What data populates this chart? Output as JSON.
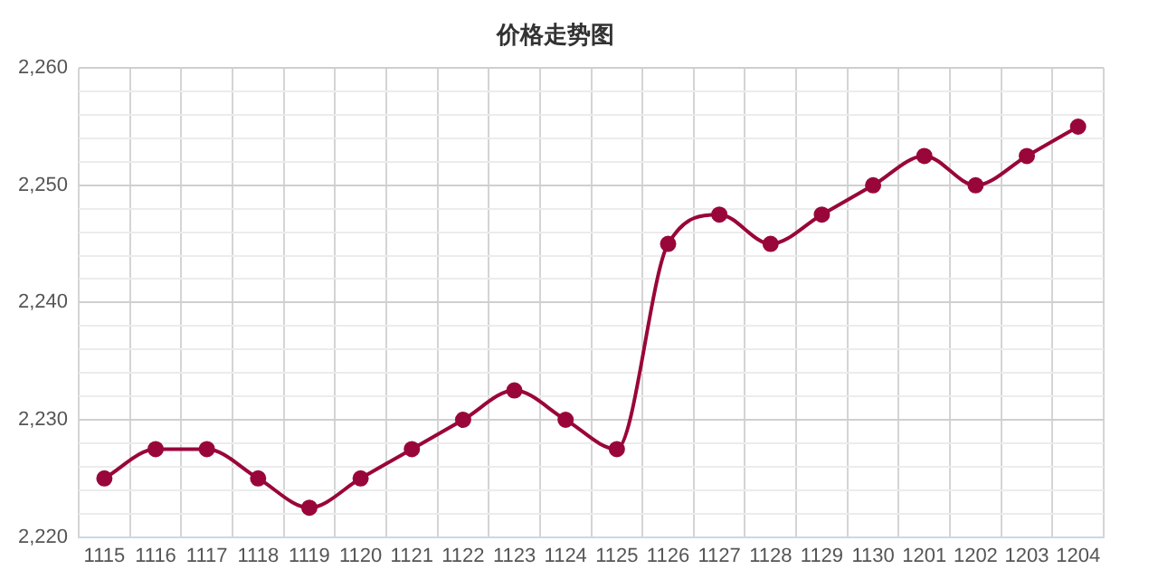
{
  "chart_data": {
    "type": "line",
    "title": "价格走势图",
    "categories": [
      "1115",
      "1116",
      "1117",
      "1118",
      "1119",
      "1120",
      "1121",
      "1122",
      "1123",
      "1124",
      "1125",
      "1126",
      "1127",
      "1128",
      "1129",
      "1130",
      "1201",
      "1202",
      "1203",
      "1204"
    ],
    "series": [
      {
        "color": "#99063a",
        "values": [
          2225,
          2227.5,
          2227.5,
          2225,
          2222.5,
          2225,
          2227.5,
          2230,
          2232.5,
          2230,
          2227.5,
          2245,
          2247.5,
          2245,
          2247.5,
          2250,
          2252.5,
          2250,
          2252.5,
          2255
        ]
      }
    ],
    "ylim": [
      2220,
      2260
    ],
    "yticks": [
      {
        "value": 2220,
        "label": "2,220"
      },
      {
        "value": 2222,
        "label": null
      },
      {
        "value": 2224,
        "label": null
      },
      {
        "value": 2226,
        "label": null
      },
      {
        "value": 2228,
        "label": null
      },
      {
        "value": 2230,
        "label": "2,230"
      },
      {
        "value": 2232,
        "label": null
      },
      {
        "value": 2234,
        "label": null
      },
      {
        "value": 2236,
        "label": null
      },
      {
        "value": 2238,
        "label": null
      },
      {
        "value": 2240,
        "label": "2,240"
      },
      {
        "value": 2242,
        "label": null
      },
      {
        "value": 2244,
        "label": null
      },
      {
        "value": 2246,
        "label": null
      },
      {
        "value": 2248,
        "label": null
      },
      {
        "value": 2250,
        "label": "2,250"
      },
      {
        "value": 2252,
        "label": null
      },
      {
        "value": 2254,
        "label": null
      },
      {
        "value": 2256,
        "label": null
      },
      {
        "value": 2258,
        "label": null
      },
      {
        "value": 2260,
        "label": "2,260"
      }
    ],
    "grid": true,
    "legend": false,
    "marker": "circle",
    "line_style": "solid"
  }
}
